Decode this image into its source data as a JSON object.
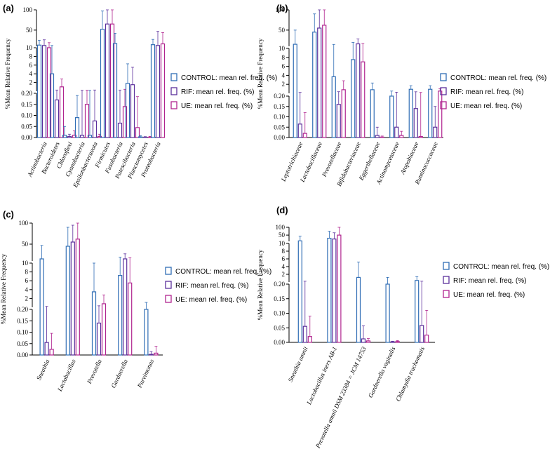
{
  "figure": {
    "legend": [
      {
        "label": "CONTROL: mean rel. freq. (%)",
        "color": "#2f6db5"
      },
      {
        "label": "RIF: mean rel. freq. (%)",
        "color": "#5b2f9c"
      },
      {
        "label": "UE: mean rel. freq. (%)",
        "color": "#b0248f"
      }
    ],
    "ylabel": "%Mean Relative Frequency"
  },
  "chart_data": [
    {
      "id": "a",
      "panel_label": "(a)",
      "type": "bar",
      "segments": [
        {
          "range": [
            0,
            0.2
          ],
          "ticks": [
            0.0,
            0.05,
            0.1,
            0.15,
            0.2
          ],
          "tick_labels": [
            "0.00",
            "0.05",
            "0.10",
            "0.15",
            "0.20"
          ]
        },
        {
          "range": [
            0,
            10
          ],
          "ticks": [
            2,
            4,
            6,
            8,
            10
          ],
          "tick_labels": [
            "2",
            "4",
            "6",
            "8",
            "10"
          ]
        },
        {
          "range": [
            10,
            100
          ],
          "ticks": [
            50,
            100
          ],
          "tick_labels": [
            "50",
            "100"
          ]
        }
      ],
      "categories": [
        "Actinobacteria",
        "Bacteroidetes",
        "Chloroflexi",
        "Cyanobacteria",
        "Epsilonbacteraeota",
        "Firmicutes",
        "Fusobacteria",
        "Patescibacteria",
        "Planctomycetes",
        "Proteobacteria"
      ],
      "series": [
        {
          "name": "CONTROL",
          "values": [
            13,
            4,
            0.01,
            0.09,
            0.01,
            52,
            17,
            1.8,
            0.003,
            14
          ],
          "errors": [
            12,
            8,
            0.04,
            0.1,
            0.2,
            45,
            25,
            4.5,
            0.005,
            13
          ]
        },
        {
          "name": "RIF",
          "values": [
            12,
            0.17,
            0.005,
            0.01,
            0.075,
            65,
            0.065,
            1.5,
            0.001,
            12
          ],
          "errors": [
            14,
            0.1,
            0.01,
            0.2,
            0.2,
            38,
            0.2,
            4,
            0.003,
            35
          ]
        },
        {
          "name": "UE",
          "values": [
            10,
            1,
            0.01,
            0.15,
            0.005,
            65,
            0.14,
            0.045,
            0.002,
            16
          ],
          "errors": [
            9,
            1.8,
            0.02,
            0.1,
            0.01,
            40,
            0.3,
            0.14,
            0.003,
            28
          ]
        }
      ]
    },
    {
      "id": "b",
      "panel_label": "(b)",
      "type": "bar",
      "segments": [
        {
          "range": [
            0,
            0.2
          ],
          "ticks": [
            0.0,
            0.05,
            0.1,
            0.15,
            0.2
          ],
          "tick_labels": [
            "0.00",
            "0.05",
            "0.10",
            "0.15",
            "0.20"
          ]
        },
        {
          "range": [
            0,
            10
          ],
          "ticks": [
            2,
            4,
            6,
            8,
            10
          ],
          "tick_labels": [
            "2",
            "4",
            "6",
            "8",
            "10"
          ]
        },
        {
          "range": [
            10,
            100
          ],
          "ticks": [
            50,
            100
          ],
          "tick_labels": [
            "50",
            "100"
          ]
        }
      ],
      "categories": [
        "Leptotrichiaceae",
        "Lactobacillaceae",
        "Prevotellaceae",
        "Bifidobacteriaceae",
        "Eggerthellaceae",
        "Actinomycetaceae",
        "Atopobiaceae",
        "Ruminococcaceae"
      ],
      "series": [
        {
          "name": "CONTROL",
          "values": [
            15,
            45,
            3.7,
            7.5,
            0.8,
            0.2,
            0.9,
            0.9
          ],
          "errors": [
            35,
            45,
            11,
            12,
            1.5,
            0.3,
            0.8,
            0.8
          ]
        },
        {
          "name": "RIF",
          "values": [
            0.065,
            55,
            0.16,
            16,
            0.01,
            0.05,
            0.14,
            0.05
          ],
          "errors": [
            0.14,
            45,
            0.2,
            12,
            0.04,
            0.2,
            0.2,
            0.1
          ]
        },
        {
          "name": "UE",
          "values": [
            0.02,
            62,
            0.8,
            7,
            0.002,
            0.01,
            0.005,
            0.5
          ],
          "errors": [
            0.1,
            40,
            2,
            10,
            0.005,
            0.02,
            0.2,
            0.5
          ]
        }
      ]
    },
    {
      "id": "c",
      "panel_label": "(c)",
      "type": "bar",
      "segments": [
        {
          "range": [
            0,
            0.2
          ],
          "ticks": [
            0.0,
            0.05,
            0.1,
            0.15,
            0.2
          ],
          "tick_labels": [
            "0.00",
            "0.05",
            "0.10",
            "0.15",
            "0.20"
          ]
        },
        {
          "range": [
            0,
            10
          ],
          "ticks": [
            2,
            4,
            6,
            8,
            10
          ],
          "tick_labels": [
            "2",
            "4",
            "6",
            "8",
            "10"
          ]
        },
        {
          "range": [
            10,
            100
          ],
          "ticks": [
            50,
            100
          ],
          "tick_labels": [
            "50",
            "100"
          ]
        }
      ],
      "categories": [
        "Sneathia",
        "Lactobacillus",
        "Prevotella",
        "Gardnerella",
        "Parvimonas"
      ],
      "series": [
        {
          "name": "CONTROL",
          "values": [
            15,
            45,
            3.5,
            7.2,
            0.2
          ],
          "errors": [
            32,
            45,
            6.5,
            12,
            0.9
          ]
        },
        {
          "name": "RIF",
          "values": [
            0.055,
            55,
            0.14,
            15,
            0.003
          ],
          "errors": [
            0.15,
            40,
            0.2,
            12,
            0.012
          ]
        },
        {
          "name": "UE",
          "values": [
            0.025,
            62,
            0.8,
            5.5,
            0.008
          ],
          "errors": [
            0.07,
            38,
            2,
            12,
            0.03
          ]
        }
      ]
    },
    {
      "id": "d",
      "panel_label": "(d)",
      "type": "bar",
      "segments": [
        {
          "range": [
            0,
            0.2
          ],
          "ticks": [
            0.0,
            0.05,
            0.1,
            0.15,
            0.2
          ],
          "tick_labels": [
            "0.00",
            "0.05",
            "0.10",
            "0.15",
            "0.20"
          ]
        },
        {
          "range": [
            0,
            10
          ],
          "ticks": [
            2,
            4,
            6,
            8,
            10
          ],
          "tick_labels": [
            "2",
            "4",
            "6",
            "8",
            "10"
          ]
        },
        {
          "range": [
            10,
            100
          ],
          "ticks": [
            50,
            100
          ],
          "tick_labels": [
            "50",
            "100"
          ]
        }
      ],
      "categories": [
        "Sneathia amnii",
        "Lactobacillus iners AB-1",
        "Prevotella amnii DSM 23384 = JCM 14753",
        "Gardnerella vaginalis",
        "Chlamydia trachomatis"
      ],
      "series": [
        {
          "name": "CONTROL",
          "values": [
            13,
            30,
            1.2,
            0.2,
            0.4
          ],
          "errors": [
            30,
            45,
            4,
            1,
            1
          ]
        },
        {
          "name": "RIF",
          "values": [
            0.055,
            25,
            0.012,
            0.002,
            0.058
          ],
          "errors": [
            0.15,
            40,
            0.045,
            0.002,
            0.15
          ]
        },
        {
          "name": "UE",
          "values": [
            0.02,
            50,
            0.005,
            0.003,
            0.025
          ],
          "errors": [
            0.07,
            50,
            0.008,
            0.003,
            0.085
          ]
        }
      ]
    }
  ]
}
